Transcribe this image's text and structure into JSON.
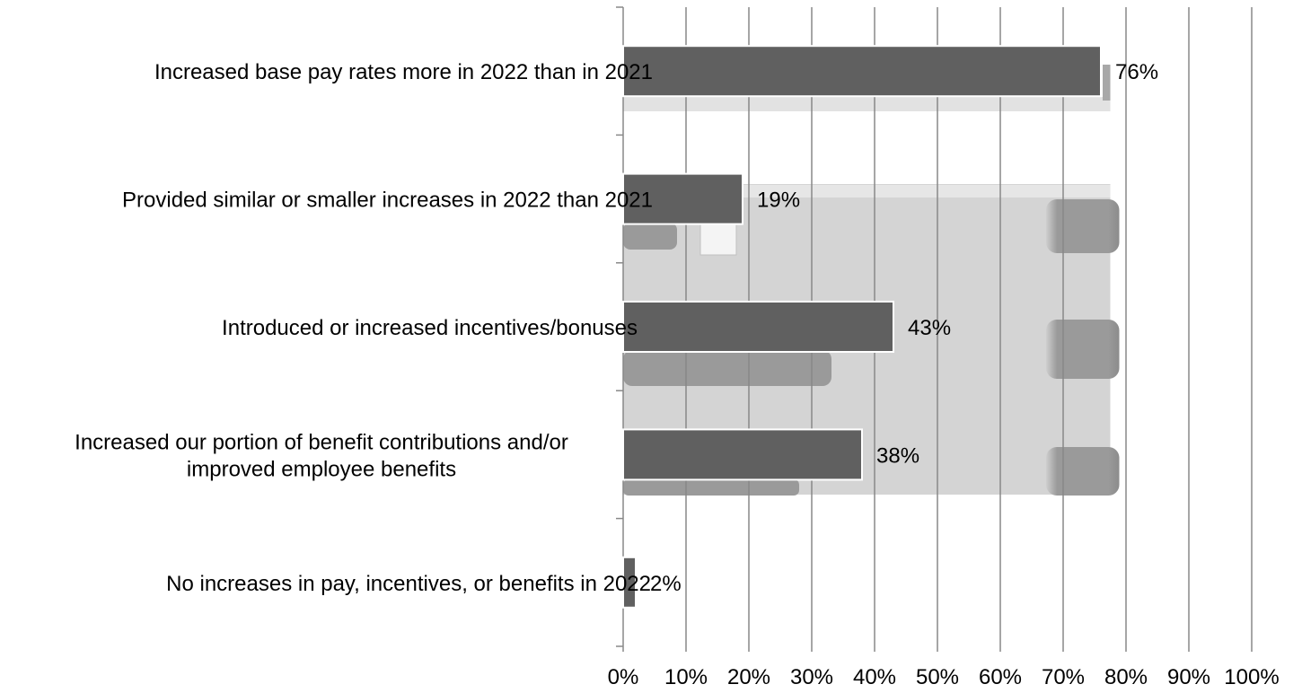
{
  "chart_data": {
    "type": "bar",
    "orientation": "horizontal",
    "title": "",
    "xlabel": "",
    "ylabel": "",
    "categories": [
      "Increased base pay rates more in 2022 than in 2021",
      "Provided similar or smaller increases in 2022 than 2021",
      "Introduced or increased incentives/bonuses",
      "Increased our portion of benefit contributions and/or improved employee benefits",
      "No increases in pay, incentives, or benefits in 2022"
    ],
    "category_lines": [
      [
        "Increased base pay rates more in 2022 than in 2021"
      ],
      [
        "Provided similar or smaller increases in 2022 than 2021"
      ],
      [
        "Introduced or increased incentives/bonuses"
      ],
      [
        "Increased our portion of benefit contributions and/or",
        "improved employee benefits"
      ],
      [
        "No increases in pay, incentives, or benefits in 2022"
      ]
    ],
    "values": [
      76,
      19,
      43,
      38,
      2
    ],
    "data_labels": [
      "76%",
      "19%",
      "43%",
      "38%",
      "2%"
    ],
    "xlim": [
      0,
      100
    ],
    "x_ticks": [
      0,
      10,
      20,
      30,
      40,
      50,
      60,
      70,
      80,
      90,
      100
    ],
    "x_tick_labels": [
      "0%",
      "10%",
      "20%",
      "30%",
      "40%",
      "50%",
      "60%",
      "70%",
      "80%",
      "90%",
      "100%"
    ],
    "grid": "vertical",
    "legend": "none",
    "colors": {
      "bar_fill": "#606060",
      "bar_stroke": "#ffffff",
      "gridline": "#888888",
      "axis": "#888888",
      "text": "#000000",
      "background_pattern_light": "#d4d4d4",
      "background_pattern_dark": "#9a9a9a"
    }
  }
}
